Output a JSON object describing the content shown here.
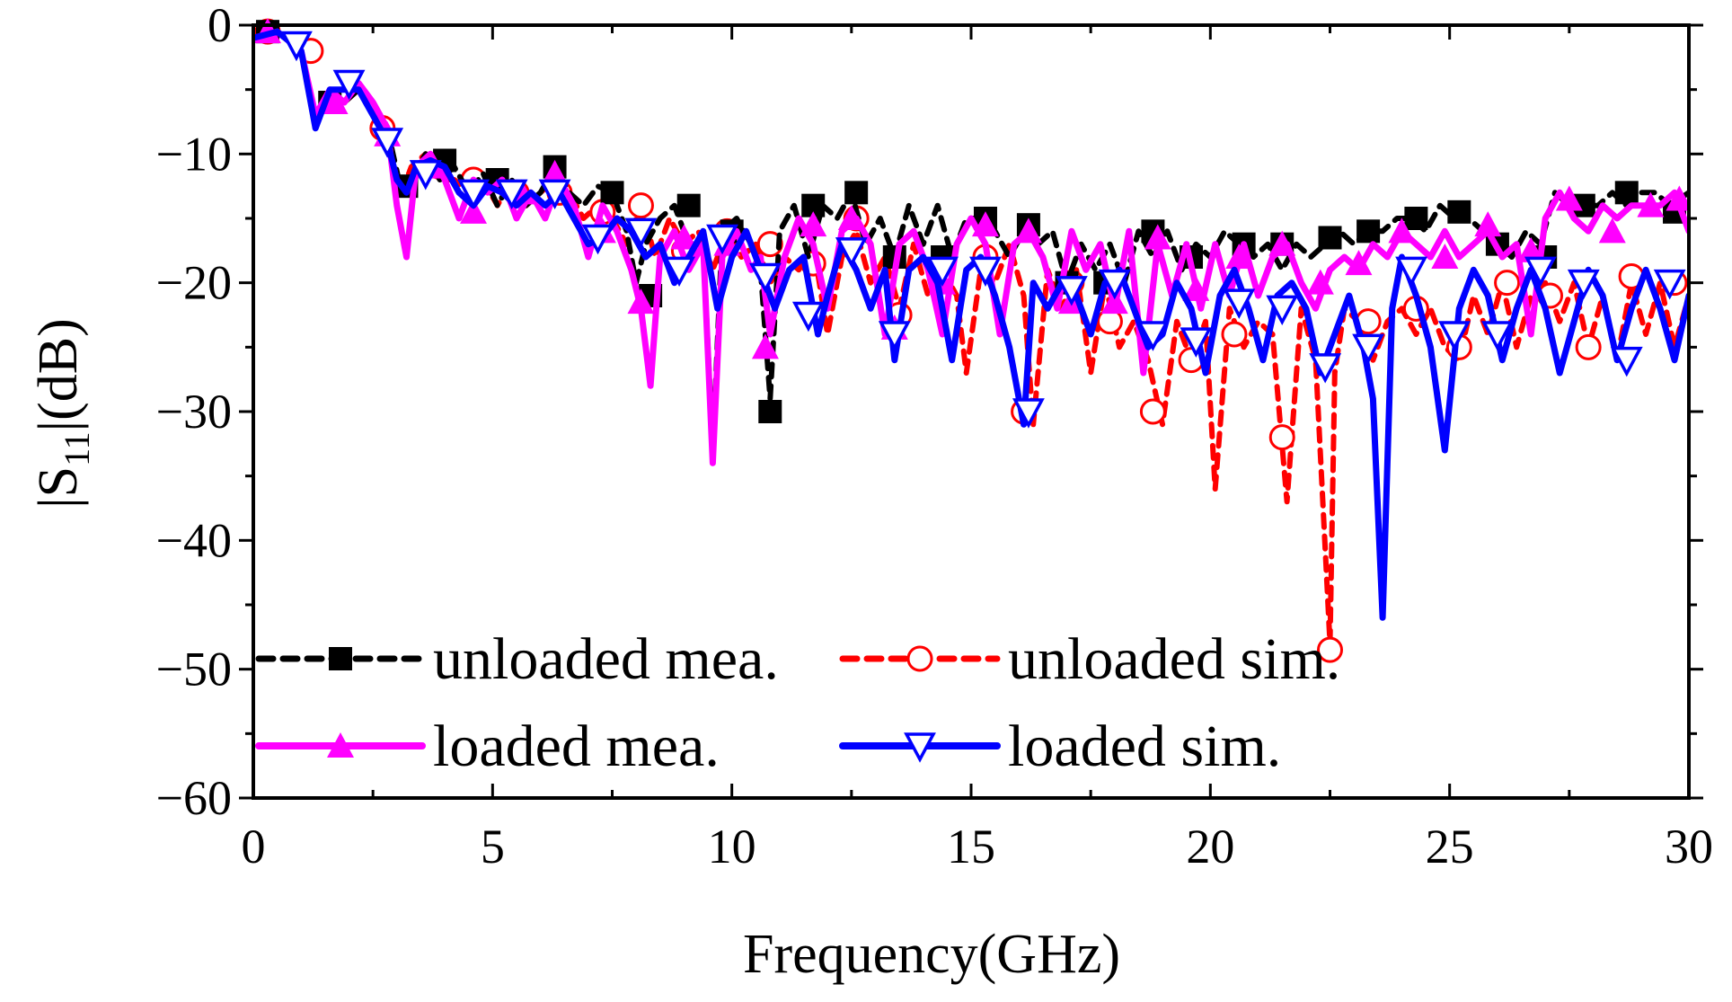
{
  "chart_data": {
    "type": "line",
    "xlabel": "Frequency(GHz)",
    "ylabel": {
      "prefix": "|S",
      "subscript": "11",
      "suffix": "|(dB)"
    },
    "xlim": [
      0,
      30
    ],
    "ylim": [
      -60,
      0
    ],
    "xticks": [
      0,
      5,
      10,
      15,
      20,
      25,
      30
    ],
    "xtick_labels": [
      "0",
      "5",
      "10",
      "15",
      "20",
      "25",
      "30"
    ],
    "yticks": [
      0,
      -10,
      -20,
      -30,
      -40,
      -50,
      -60
    ],
    "ytick_labels": [
      "0",
      "−10",
      "−20",
      "−30",
      "−40",
      "−50",
      "−60"
    ],
    "legend": {
      "placement": "bottom-left",
      "columns": 2
    },
    "series": [
      {
        "name": "unloaded mea.",
        "color": "#000000",
        "line_style": "dashed",
        "marker": "filled-square",
        "x": [
          0.0,
          0.5,
          1.0,
          1.3,
          1.6,
          1.9,
          2.2,
          2.5,
          2.8,
          3.1,
          3.3,
          3.6,
          3.9,
          4.2,
          4.5,
          4.8,
          5.1,
          5.4,
          5.7,
          6.0,
          6.3,
          6.6,
          6.9,
          7.2,
          7.5,
          7.8,
          8.0,
          8.2,
          8.5,
          8.8,
          9.1,
          9.4,
          9.6,
          9.8,
          10.1,
          10.4,
          10.6,
          10.8,
          11.0,
          11.3,
          11.6,
          11.9,
          12.2,
          12.5,
          12.8,
          13.1,
          13.4,
          13.7,
          14.0,
          14.3,
          14.6,
          14.9,
          15.2,
          15.5,
          15.8,
          16.1,
          16.4,
          16.7,
          17.0,
          17.3,
          17.6,
          17.9,
          18.2,
          18.5,
          18.8,
          19.1,
          19.4,
          19.7,
          20.0,
          20.3,
          20.6,
          20.9,
          21.2,
          21.5,
          21.8,
          22.1,
          22.4,
          22.7,
          23.0,
          23.3,
          23.6,
          23.9,
          24.2,
          24.5,
          24.8,
          25.1,
          25.4,
          25.7,
          26.0,
          26.3,
          26.6,
          26.9,
          27.2,
          27.5,
          27.8,
          28.1,
          28.4,
          28.7,
          29.0,
          29.3,
          29.6,
          30.0
        ],
        "y": [
          -1,
          -0.5,
          -2,
          -7,
          -5,
          -6,
          -5,
          -6,
          -8,
          -13,
          -12,
          -10,
          -12,
          -11,
          -13,
          -11.5,
          -14,
          -12,
          -14,
          -13,
          -11,
          -13,
          -14,
          -12.5,
          -13,
          -16,
          -20,
          -17,
          -15,
          -14,
          -17,
          -17,
          -33,
          -16,
          -15,
          -17,
          -19,
          -29,
          -16,
          -14,
          -18,
          -14,
          -15,
          -13,
          -17,
          -15,
          -18,
          -14,
          -17,
          -14,
          -18,
          -15,
          -15,
          -16,
          -18,
          -16,
          -17,
          -16,
          -20,
          -17,
          -19,
          -17,
          -20,
          -16,
          -18,
          -16,
          -19,
          -17,
          -18,
          -16,
          -17,
          -18,
          -17,
          -19,
          -17,
          -18,
          -17,
          -16,
          -17,
          -16,
          -16,
          -15,
          -15,
          -16,
          -14,
          -15,
          -15,
          -16,
          -17,
          -18,
          -16,
          -17,
          -13,
          -14,
          -14,
          -14,
          -13,
          -14,
          -13,
          -13,
          -14,
          -13
        ],
        "marker_x": [
          0.3,
          1.6,
          3.2,
          4.0,
          5.1,
          6.3,
          7.5,
          8.3,
          9.1,
          10.0,
          10.8,
          11.7,
          12.6,
          13.4,
          14.4,
          15.3,
          16.2,
          17.0,
          17.8,
          18.8,
          19.6,
          20.7,
          21.5,
          22.5,
          23.3,
          24.3,
          25.2,
          26.0,
          27.0,
          27.8,
          28.7,
          29.7
        ],
        "marker_y": [
          -0.5,
          -6,
          -12.5,
          -10.5,
          -12,
          -11,
          -13,
          -21,
          -14,
          -16,
          -30,
          -14,
          -13,
          -18,
          -18,
          -15,
          -15.5,
          -20,
          -20,
          -16,
          -18,
          -17,
          -17,
          -16.5,
          -16,
          -15,
          -14.5,
          -17,
          -18,
          -14,
          -13,
          -14.5
        ]
      },
      {
        "name": "unloaded sim.",
        "color": "#ff0000",
        "line_style": "dashed",
        "marker": "open-circle",
        "x": [
          0.0,
          0.5,
          1.0,
          1.3,
          1.6,
          1.9,
          2.2,
          2.5,
          2.8,
          3.1,
          3.3,
          3.6,
          3.9,
          4.2,
          4.5,
          4.8,
          5.1,
          5.4,
          5.7,
          6.0,
          6.3,
          6.6,
          6.9,
          7.2,
          7.5,
          7.8,
          8.1,
          8.4,
          8.7,
          9.0,
          9.3,
          9.6,
          9.9,
          10.2,
          10.5,
          10.8,
          11.1,
          11.4,
          11.7,
          12.0,
          12.3,
          12.6,
          12.9,
          13.2,
          13.5,
          13.8,
          14.1,
          14.4,
          14.7,
          14.9,
          15.2,
          15.5,
          15.8,
          16.1,
          16.3,
          16.6,
          16.9,
          17.2,
          17.5,
          17.8,
          18.1,
          18.4,
          18.7,
          19.0,
          19.3,
          19.6,
          19.9,
          20.1,
          20.4,
          20.7,
          21.0,
          21.3,
          21.6,
          21.9,
          22.2,
          22.5,
          22.6,
          22.8,
          23.1,
          23.4,
          23.7,
          24.0,
          24.3,
          24.6,
          24.9,
          25.2,
          25.5,
          25.8,
          26.1,
          26.4,
          26.7,
          27.0,
          27.3,
          27.6,
          27.9,
          28.2,
          28.5,
          28.8,
          29.1,
          29.4,
          29.7,
          30.0
        ],
        "y": [
          -1,
          -0.5,
          -2,
          -7,
          -5,
          -6,
          -5,
          -6,
          -9,
          -13,
          -11,
          -10,
          -12,
          -12,
          -13,
          -12,
          -14,
          -12,
          -14,
          -13,
          -12,
          -13,
          -15,
          -14,
          -15,
          -17,
          -14,
          -18,
          -15,
          -17,
          -16,
          -19,
          -16,
          -18,
          -17,
          -20,
          -18,
          -19,
          -17,
          -24,
          -18,
          -16,
          -20,
          -18,
          -22,
          -17,
          -21,
          -19,
          -21,
          -27,
          -19,
          -20,
          -17,
          -21,
          -31,
          -19,
          -22,
          -19,
          -27,
          -20,
          -25,
          -23,
          -26,
          -31,
          -23,
          -26,
          -23,
          -36,
          -22,
          -25,
          -23,
          -24,
          -37,
          -22,
          -26,
          -48,
          -27,
          -22,
          -23,
          -26,
          -23,
          -22,
          -24,
          -22,
          -25,
          -26,
          -21,
          -24,
          -20,
          -25,
          -21,
          -20,
          -23,
          -20,
          -25,
          -21,
          -26,
          -20,
          -24,
          -20,
          -25,
          -21
        ],
        "marker_x": [
          0.3,
          1.2,
          2.7,
          3.9,
          4.6,
          5.5,
          6.4,
          7.3,
          8.1,
          9.0,
          9.9,
          10.8,
          11.7,
          12.6,
          13.5,
          14.4,
          15.3,
          16.1,
          17.1,
          17.9,
          18.8,
          19.6,
          20.5,
          21.5,
          22.5,
          23.3,
          24.3,
          25.2,
          26.2,
          27.1,
          27.9,
          28.8,
          29.7
        ],
        "marker_y": [
          -0.5,
          -2,
          -8,
          -11,
          -12,
          -13,
          -13,
          -14.5,
          -14,
          -17.5,
          -16,
          -17,
          -18.5,
          -15,
          -22.5,
          -19,
          -18,
          -30,
          -20,
          -23,
          -30,
          -26,
          -24,
          -32,
          -48.5,
          -23,
          -22,
          -25,
          -20,
          -21,
          -25,
          -19.5,
          -20
        ]
      },
      {
        "name": "loaded mea.",
        "color": "#ff00ff",
        "line_style": "solid",
        "marker": "filled-triangle-up",
        "x": [
          0.0,
          0.5,
          1.0,
          1.3,
          1.6,
          1.9,
          2.2,
          2.5,
          2.8,
          3.0,
          3.2,
          3.4,
          3.7,
          4.0,
          4.3,
          4.6,
          4.9,
          5.2,
          5.5,
          5.8,
          6.1,
          6.4,
          6.7,
          7.0,
          7.3,
          7.6,
          7.9,
          8.1,
          8.3,
          8.5,
          8.8,
          9.1,
          9.4,
          9.6,
          9.8,
          10.1,
          10.4,
          10.6,
          10.8,
          11.1,
          11.4,
          11.7,
          12.0,
          12.3,
          12.6,
          12.9,
          13.2,
          13.5,
          13.8,
          14.1,
          14.4,
          14.7,
          15.0,
          15.3,
          15.6,
          15.9,
          16.2,
          16.5,
          16.8,
          17.1,
          17.4,
          17.7,
          18.0,
          18.3,
          18.6,
          18.9,
          19.2,
          19.5,
          19.8,
          20.1,
          20.4,
          20.7,
          21.0,
          21.3,
          21.6,
          21.9,
          22.2,
          22.5,
          22.8,
          23.1,
          23.4,
          23.7,
          24.0,
          24.3,
          24.6,
          24.9,
          25.2,
          25.5,
          25.8,
          26.1,
          26.4,
          26.7,
          27.0,
          27.3,
          27.6,
          27.9,
          28.2,
          28.5,
          28.8,
          29.1,
          29.4,
          29.7,
          30.0
        ],
        "y": [
          -1,
          -0.5,
          -2,
          -7,
          -5,
          -6,
          -4.5,
          -6,
          -8,
          -14,
          -18,
          -11,
          -10,
          -12,
          -15,
          -12,
          -13,
          -12,
          -15,
          -13,
          -15,
          -12,
          -14,
          -18,
          -14,
          -16,
          -19,
          -22,
          -28,
          -18,
          -16,
          -19,
          -17,
          -34,
          -18,
          -16,
          -19,
          -18,
          -24,
          -18,
          -15,
          -17,
          -22,
          -16,
          -15,
          -17,
          -24,
          -17,
          -16,
          -19,
          -24,
          -17,
          -15,
          -17,
          -24,
          -17,
          -16,
          -18,
          -22,
          -16,
          -19,
          -17,
          -22,
          -16,
          -27,
          -17,
          -21,
          -17,
          -22,
          -17,
          -21,
          -17,
          -21,
          -18,
          -17,
          -20,
          -22,
          -19,
          -18,
          -19,
          -17,
          -18,
          -16,
          -17,
          -18,
          -16,
          -18,
          -17,
          -16,
          -18,
          -17,
          -24,
          -15,
          -13,
          -15,
          -16,
          -14,
          -15,
          -14,
          -14,
          -14,
          -13,
          -16
        ],
        "marker_x": [
          0.3,
          1.7,
          2.8,
          3.7,
          4.6,
          5.6,
          6.3,
          7.3,
          8.1,
          9.0,
          9.9,
          10.7,
          11.7,
          12.5,
          13.4,
          14.4,
          15.3,
          16.2,
          17.1,
          18.0,
          18.9,
          19.7,
          20.6,
          21.5,
          22.3,
          23.1,
          24.0,
          24.9,
          25.8,
          26.7,
          27.5,
          28.4,
          29.2,
          29.8
        ],
        "marker_y": [
          -0.5,
          -6,
          -8.5,
          -11,
          -14.5,
          -13,
          -11.5,
          -16,
          -21.5,
          -16.5,
          -17,
          -25,
          -15.5,
          -15,
          -23.5,
          -20,
          -15.5,
          -16,
          -21.5,
          -21.5,
          -16.5,
          -20.5,
          -18,
          -17,
          -20,
          -18.5,
          -16,
          -18,
          -15.5,
          -17.5,
          -13.5,
          -16,
          -14,
          -13.5
        ]
      },
      {
        "name": "loaded sim.",
        "color": "#0000ff",
        "line_style": "solid",
        "marker": "open-triangle-down",
        "x": [
          0.0,
          0.5,
          1.0,
          1.3,
          1.6,
          1.9,
          2.2,
          2.5,
          2.8,
          3.0,
          3.2,
          3.4,
          3.7,
          4.0,
          4.3,
          4.6,
          4.9,
          5.2,
          5.5,
          5.8,
          6.1,
          6.4,
          6.7,
          7.0,
          7.3,
          7.6,
          7.9,
          8.2,
          8.5,
          8.8,
          9.1,
          9.4,
          9.7,
          10.0,
          10.3,
          10.6,
          10.9,
          11.2,
          11.5,
          11.8,
          12.0,
          12.3,
          12.6,
          12.9,
          13.2,
          13.4,
          13.7,
          14.0,
          14.3,
          14.6,
          14.9,
          15.2,
          15.5,
          15.8,
          16.1,
          16.3,
          16.6,
          16.9,
          17.2,
          17.5,
          17.8,
          18.1,
          18.4,
          18.7,
          19.0,
          19.3,
          19.6,
          19.9,
          20.2,
          20.5,
          20.8,
          21.1,
          21.4,
          21.7,
          22.0,
          22.3,
          22.6,
          22.9,
          23.2,
          23.4,
          23.6,
          23.8,
          24.0,
          24.3,
          24.6,
          24.9,
          25.2,
          25.5,
          25.8,
          26.1,
          26.4,
          26.7,
          27.0,
          27.3,
          27.6,
          27.9,
          28.2,
          28.5,
          28.8,
          29.1,
          29.4,
          29.7,
          30.0
        ],
        "y": [
          -1,
          -0.5,
          -2,
          -8,
          -5,
          -5,
          -5,
          -7,
          -9,
          -12,
          -13,
          -11,
          -10.5,
          -11,
          -13,
          -14,
          -12.5,
          -13,
          -14,
          -13,
          -14,
          -13,
          -15,
          -17,
          -16.5,
          -15,
          -16,
          -18,
          -17,
          -20,
          -18,
          -16,
          -22,
          -18,
          -16,
          -19,
          -22,
          -19,
          -18,
          -24,
          -21,
          -17,
          -19,
          -22,
          -19,
          -26,
          -19,
          -18,
          -20,
          -26,
          -19,
          -18,
          -21,
          -25,
          -31,
          -20,
          -22,
          -20,
          -21,
          -24,
          -20,
          -19,
          -22,
          -25,
          -24,
          -20,
          -22,
          -27,
          -21,
          -19,
          -22,
          -26,
          -21,
          -20,
          -22,
          -27,
          -24,
          -21,
          -25,
          -29,
          -46,
          -22,
          -18,
          -21,
          -25,
          -33,
          -22,
          -19,
          -21,
          -26,
          -22,
          -19,
          -22,
          -27,
          -23,
          -19,
          -21,
          -26,
          -22,
          -19,
          -22,
          -26,
          -21
        ],
        "marker_x": [
          0.9,
          2.0,
          2.8,
          3.6,
          4.6,
          5.4,
          6.3,
          7.2,
          8.1,
          8.9,
          9.8,
          10.7,
          11.6,
          12.5,
          13.4,
          14.4,
          15.3,
          16.2,
          17.1,
          18.0,
          18.8,
          19.7,
          20.6,
          21.5,
          22.4,
          23.3,
          24.2,
          25.1,
          26.0,
          26.9,
          27.8,
          28.7,
          29.6
        ],
        "marker_y": [
          -1.5,
          -4.5,
          -9,
          -11.5,
          -13,
          -13,
          -13,
          -16.5,
          -16,
          -19,
          -16.5,
          -19.5,
          -22.5,
          -17.5,
          -24,
          -19,
          -19,
          -30,
          -20.5,
          -20,
          -24,
          -24.5,
          -21.5,
          -22,
          -26.5,
          -25,
          -19,
          -24,
          -24,
          -19,
          -20,
          -26,
          -20
        ]
      }
    ]
  }
}
